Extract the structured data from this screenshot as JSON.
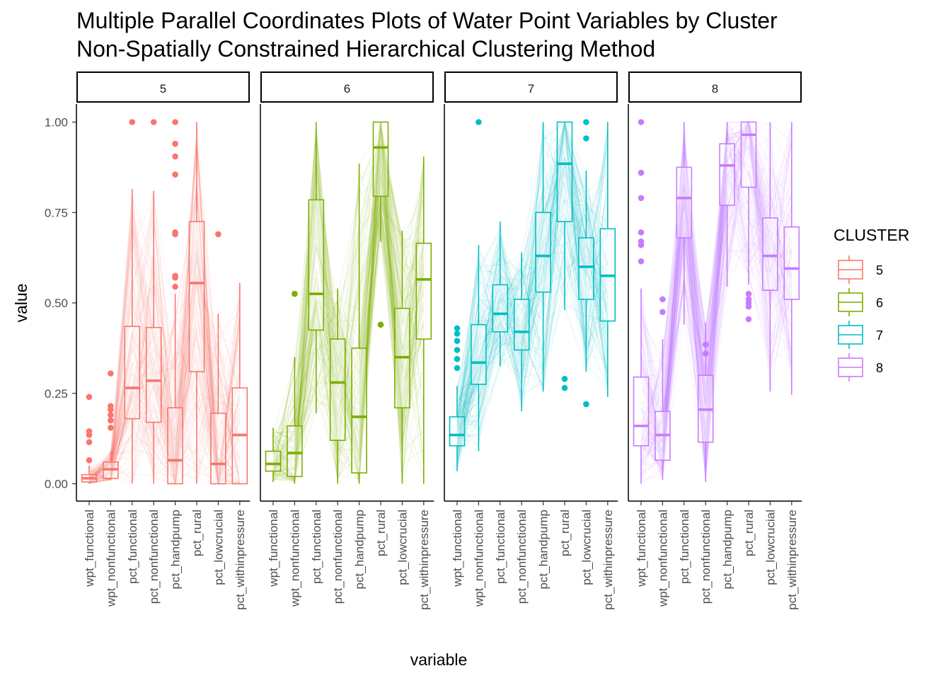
{
  "chart_data": {
    "type": "parallel-coordinates-boxplot",
    "title_line1": "Multiple Parallel Coordinates Plots of Water Point Variables by Cluster",
    "title_line2": "Non-Spatially Constrained Hierarchical Clustering Method",
    "xlabel": "variable",
    "ylabel": "value",
    "ylim": [
      0,
      1
    ],
    "y_ticks": [
      "0.00",
      "0.25",
      "0.50",
      "0.75",
      "1.00"
    ],
    "y_tick_values": [
      0,
      0.25,
      0.5,
      0.75,
      1.0
    ],
    "grid": false,
    "legend_position": "right",
    "variables": [
      "wpt_functional",
      "wpt_nonfunctional",
      "pct_functional",
      "pct_nonfunctional",
      "pct_handpump",
      "pct_rural",
      "pct_lowcrucial",
      "pct_withinpressure"
    ],
    "legend": {
      "title": "CLUSTER"
    },
    "panels": [
      {
        "cluster": "5",
        "color": "#F8766D",
        "boxes": [
          {
            "min": 0.0,
            "q1": 0.005,
            "median": 0.015,
            "q3": 0.025,
            "max": 0.05,
            "outliers": [
              0.24,
              0.145,
              0.135,
              0.115,
              0.065
            ]
          },
          {
            "min": 0.01,
            "q1": 0.015,
            "median": 0.04,
            "q3": 0.06,
            "max": 0.09,
            "outliers": [
              0.305,
              0.215,
              0.205,
              0.19,
              0.175,
              0.155
            ]
          },
          {
            "min": 0.0,
            "q1": 0.18,
            "median": 0.265,
            "q3": 0.435,
            "max": 0.815,
            "outliers": [
              1.0
            ]
          },
          {
            "min": 0.0,
            "q1": 0.17,
            "median": 0.285,
            "q3": 0.432,
            "max": 0.81,
            "outliers": [
              1.0
            ]
          },
          {
            "min": 0.0,
            "q1": 0.0,
            "median": 0.065,
            "q3": 0.21,
            "max": 0.525,
            "outliers": [
              1.0,
              0.94,
              0.905,
              0.855,
              0.695,
              0.69,
              0.575,
              0.57,
              0.545
            ]
          },
          {
            "min": 0.0,
            "q1": 0.31,
            "median": 0.555,
            "q3": 0.725,
            "max": 1.0,
            "outliers": []
          },
          {
            "min": 0.0,
            "q1": 0.0,
            "median": 0.055,
            "q3": 0.195,
            "max": 0.47,
            "outliers": [
              0.69
            ]
          },
          {
            "min": 0.0,
            "q1": 0.0,
            "median": 0.135,
            "q3": 0.265,
            "max": 0.555,
            "outliers": []
          }
        ]
      },
      {
        "cluster": "6",
        "color": "#7CAE00",
        "boxes": [
          {
            "min": 0.005,
            "q1": 0.035,
            "median": 0.055,
            "q3": 0.09,
            "max": 0.155,
            "outliers": []
          },
          {
            "min": 0.0,
            "q1": 0.02,
            "median": 0.085,
            "q3": 0.16,
            "max": 0.35,
            "outliers": [
              0.525
            ]
          },
          {
            "min": 0.195,
            "q1": 0.425,
            "median": 0.525,
            "q3": 0.785,
            "max": 1.0,
            "outliers": []
          },
          {
            "min": 0.0,
            "q1": 0.12,
            "median": 0.28,
            "q3": 0.4,
            "max": 0.54,
            "outliers": []
          },
          {
            "min": 0.0,
            "q1": 0.03,
            "median": 0.185,
            "q3": 0.375,
            "max": 0.885,
            "outliers": []
          },
          {
            "min": 0.67,
            "q1": 0.795,
            "median": 0.93,
            "q3": 1.0,
            "max": 1.0,
            "outliers": [
              0.44
            ]
          },
          {
            "min": 0.0,
            "q1": 0.21,
            "median": 0.35,
            "q3": 0.485,
            "max": 0.7,
            "outliers": []
          },
          {
            "min": 0.0,
            "q1": 0.4,
            "median": 0.565,
            "q3": 0.665,
            "max": 0.905,
            "outliers": []
          }
        ]
      },
      {
        "cluster": "7",
        "color": "#00BFC4",
        "boxes": [
          {
            "min": 0.035,
            "q1": 0.105,
            "median": 0.135,
            "q3": 0.185,
            "max": 0.27,
            "outliers": [
              0.43,
              0.415,
              0.395,
              0.37,
              0.345,
              0.32
            ]
          },
          {
            "min": 0.09,
            "q1": 0.275,
            "median": 0.335,
            "q3": 0.44,
            "max": 0.66,
            "outliers": [
              1.0
            ]
          },
          {
            "min": 0.325,
            "q1": 0.42,
            "median": 0.47,
            "q3": 0.55,
            "max": 0.725,
            "outliers": []
          },
          {
            "min": 0.2,
            "q1": 0.37,
            "median": 0.42,
            "q3": 0.51,
            "max": 0.64,
            "outliers": []
          },
          {
            "min": 0.255,
            "q1": 0.53,
            "median": 0.63,
            "q3": 0.75,
            "max": 1.0,
            "outliers": []
          },
          {
            "min": 0.48,
            "q1": 0.725,
            "median": 0.885,
            "q3": 1.0,
            "max": 1.0,
            "outliers": [
              0.29,
              0.265
            ]
          },
          {
            "min": 0.31,
            "q1": 0.51,
            "median": 0.6,
            "q3": 0.68,
            "max": 0.865,
            "outliers": [
              1.0,
              0.955,
              0.22
            ]
          },
          {
            "min": 0.24,
            "q1": 0.45,
            "median": 0.575,
            "q3": 0.705,
            "max": 1.0,
            "outliers": []
          }
        ]
      },
      {
        "cluster": "8",
        "color": "#C77CFF",
        "boxes": [
          {
            "min": 0.0,
            "q1": 0.105,
            "median": 0.16,
            "q3": 0.295,
            "max": 0.54,
            "outliers": [
              1.0,
              0.86,
              0.79,
              0.695,
              0.67,
              0.66,
              0.615
            ]
          },
          {
            "min": 0.01,
            "q1": 0.065,
            "median": 0.135,
            "q3": 0.2,
            "max": 0.4,
            "outliers": [
              0.51,
              0.475
            ]
          },
          {
            "min": 0.44,
            "q1": 0.68,
            "median": 0.79,
            "q3": 0.875,
            "max": 1.0,
            "outliers": []
          },
          {
            "min": 0.005,
            "q1": 0.115,
            "median": 0.205,
            "q3": 0.3,
            "max": 0.445,
            "outliers": [
              0.385,
              0.36
            ]
          },
          {
            "min": 0.545,
            "q1": 0.77,
            "median": 0.88,
            "q3": 0.94,
            "max": 1.0,
            "outliers": []
          },
          {
            "min": 0.55,
            "q1": 0.82,
            "median": 0.965,
            "q3": 1.0,
            "max": 1.0,
            "outliers": [
              0.525,
              0.51,
              0.5,
              0.49,
              0.455
            ]
          },
          {
            "min": 0.255,
            "q1": 0.535,
            "median": 0.63,
            "q3": 0.735,
            "max": 1.0,
            "outliers": []
          },
          {
            "min": 0.245,
            "q1": 0.51,
            "median": 0.595,
            "q3": 0.71,
            "max": 1.0,
            "outliers": []
          }
        ]
      }
    ]
  }
}
